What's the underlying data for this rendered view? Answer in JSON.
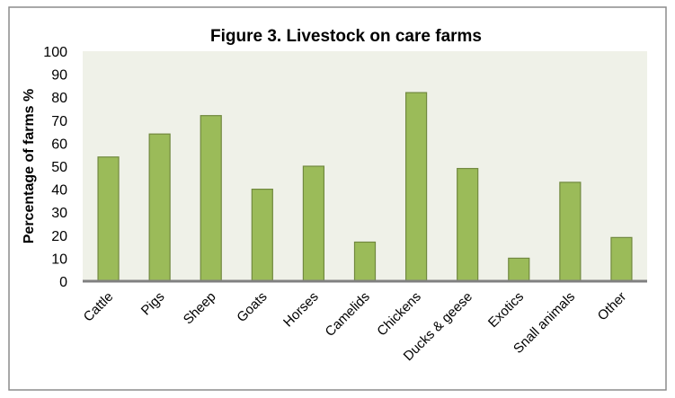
{
  "chart_data": {
    "type": "bar",
    "title": "Figure 3. Livestock on care farms",
    "xlabel": "",
    "ylabel": "Percentage of farms %",
    "ylim": [
      0,
      100
    ],
    "yticks": [
      "0",
      "10",
      "20",
      "30",
      "40",
      "50",
      "60",
      "70",
      "80",
      "90",
      "100"
    ],
    "grid": false,
    "categories": [
      "Cattle",
      "Pigs",
      "Sheep",
      "Goats",
      "Horses",
      "Camelids",
      "Chickens",
      "Ducks & geese",
      "Exotics",
      "Snall animals",
      "Other"
    ],
    "values": [
      54,
      64,
      72,
      40,
      50,
      17,
      82,
      49,
      10,
      43,
      19
    ],
    "colors": {
      "bar": "#9bbb59",
      "bar_border": "#71893f",
      "plot_bg": "#eff1e8",
      "axis": "#808080"
    }
  }
}
